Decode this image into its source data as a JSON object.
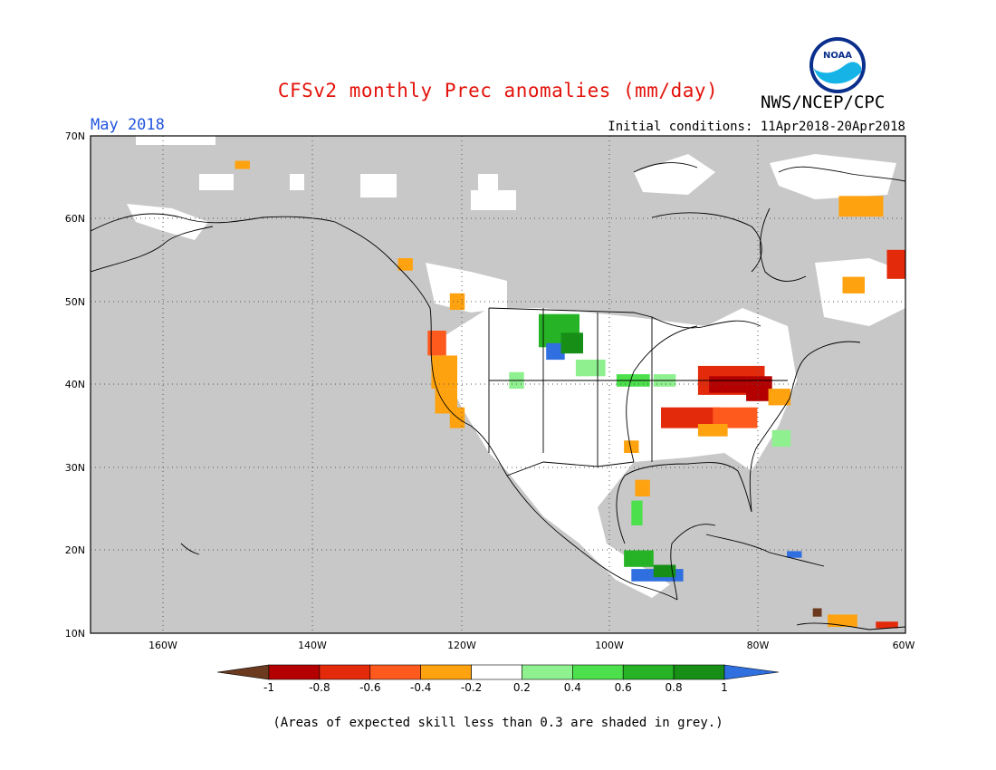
{
  "header": {
    "title": "CFSv2 monthly Prec anomalies (mm/day)",
    "org": "NWS/NCEP/CPC",
    "month": "May 2018",
    "initial_conditions": "Initial conditions: 11Apr2018-20Apr2018",
    "logo_text": "NOAA"
  },
  "footnote": "(Areas of expected skill less than 0.3 are shaded in grey.)",
  "colors": {
    "background_grey": "#c8c8c8",
    "land_white": "#ffffff",
    "coast": "#000000"
  },
  "map": {
    "lat_labels": [
      "70N",
      "60N",
      "50N",
      "40N",
      "30N",
      "20N",
      "10N"
    ],
    "lon_labels": [
      "160W",
      "140W",
      "120W",
      "100W",
      "80W",
      "60W"
    ]
  },
  "colorbar": {
    "labels": [
      "-1",
      "-0.8",
      "-0.6",
      "-0.4",
      "-0.2",
      "0.2",
      "0.4",
      "0.6",
      "0.8",
      "1"
    ],
    "colors": [
      "#6b3a1f",
      "#b40000",
      "#e32a0b",
      "#ff5a1e",
      "#ffa20f",
      "#ffffff",
      "#8ef08e",
      "#4ce04c",
      "#26b426",
      "#178f17",
      "#2f6fe0"
    ]
  },
  "anomaly_patches": [
    {
      "lon": -124.0,
      "lat": 41.5,
      "w": 3.5,
      "h": 4.0,
      "color": "#ffa20f"
    },
    {
      "lon": -124.5,
      "lat": 45.0,
      "w": 2.5,
      "h": 3.0,
      "color": "#ff5a1e"
    },
    {
      "lon": -123.5,
      "lat": 38.0,
      "w": 3.0,
      "h": 3.0,
      "color": "#ffa20f"
    },
    {
      "lon": -121.5,
      "lat": 36.0,
      "w": 2.0,
      "h": 2.5,
      "color": "#ffa20f"
    },
    {
      "lon": -128.5,
      "lat": 54.5,
      "w": 2.0,
      "h": 1.5,
      "color": "#ffa20f"
    },
    {
      "lon": -121.5,
      "lat": 50.0,
      "w": 2.0,
      "h": 2.0,
      "color": "#ffa20f"
    },
    {
      "lon": -150.5,
      "lat": 66.5,
      "w": 2.0,
      "h": 1.0,
      "color": "#ffa20f"
    },
    {
      "lon": -109.5,
      "lat": 46.5,
      "w": 5.5,
      "h": 4.0,
      "color": "#26b426"
    },
    {
      "lon": -108.5,
      "lat": 44.0,
      "w": 2.5,
      "h": 2.0,
      "color": "#2f6fe0"
    },
    {
      "lon": -106.5,
      "lat": 45.0,
      "w": 3.0,
      "h": 2.5,
      "color": "#178f17"
    },
    {
      "lon": -104.5,
      "lat": 42.0,
      "w": 4.0,
      "h": 2.0,
      "color": "#8ef08e"
    },
    {
      "lon": -99.0,
      "lat": 40.5,
      "w": 4.5,
      "h": 1.5,
      "color": "#4ce04c"
    },
    {
      "lon": -94.0,
      "lat": 40.5,
      "w": 3.0,
      "h": 1.5,
      "color": "#8ef08e"
    },
    {
      "lon": -113.5,
      "lat": 40.5,
      "w": 2.0,
      "h": 2.0,
      "color": "#8ef08e"
    },
    {
      "lon": -88.0,
      "lat": 40.5,
      "w": 9.0,
      "h": 3.5,
      "color": "#e32a0b"
    },
    {
      "lon": -86.5,
      "lat": 40.0,
      "w": 5.0,
      "h": 2.0,
      "color": "#b40000"
    },
    {
      "lon": -81.5,
      "lat": 39.5,
      "w": 3.5,
      "h": 3.0,
      "color": "#b40000"
    },
    {
      "lon": -78.5,
      "lat": 38.5,
      "w": 3.0,
      "h": 2.0,
      "color": "#ffa20f"
    },
    {
      "lon": -93.0,
      "lat": 36.0,
      "w": 8.0,
      "h": 2.5,
      "color": "#e32a0b"
    },
    {
      "lon": -86.0,
      "lat": 36.0,
      "w": 6.0,
      "h": 2.5,
      "color": "#ff5a1e"
    },
    {
      "lon": -88.0,
      "lat": 34.5,
      "w": 4.0,
      "h": 1.5,
      "color": "#ffa20f"
    },
    {
      "lon": -98.0,
      "lat": 32.5,
      "w": 2.0,
      "h": 1.5,
      "color": "#ffa20f"
    },
    {
      "lon": -96.5,
      "lat": 27.5,
      "w": 2.0,
      "h": 2.0,
      "color": "#ffa20f"
    },
    {
      "lon": -97.0,
      "lat": 24.5,
      "w": 1.5,
      "h": 3.0,
      "color": "#4ce04c"
    },
    {
      "lon": -98.0,
      "lat": 19.0,
      "w": 4.0,
      "h": 2.0,
      "color": "#26b426"
    },
    {
      "lon": -97.0,
      "lat": 17.0,
      "w": 7.0,
      "h": 1.5,
      "color": "#2f6fe0"
    },
    {
      "lon": -94.0,
      "lat": 17.5,
      "w": 3.0,
      "h": 1.5,
      "color": "#178f17"
    },
    {
      "lon": -78.0,
      "lat": 33.5,
      "w": 2.5,
      "h": 2.0,
      "color": "#8ef08e"
    },
    {
      "lon": -69.0,
      "lat": 61.5,
      "w": 6.0,
      "h": 2.5,
      "color": "#ffa20f"
    },
    {
      "lon": -62.5,
      "lat": 54.5,
      "w": 5.0,
      "h": 3.5,
      "color": "#e32a0b"
    },
    {
      "lon": -68.5,
      "lat": 52.0,
      "w": 3.0,
      "h": 2.0,
      "color": "#ffa20f"
    },
    {
      "lon": -76.0,
      "lat": 19.5,
      "w": 2.0,
      "h": 0.8,
      "color": "#2f6fe0"
    },
    {
      "lon": -70.5,
      "lat": 11.5,
      "w": 4.0,
      "h": 1.5,
      "color": "#ffa20f"
    },
    {
      "lon": -64.0,
      "lat": 11.0,
      "w": 3.0,
      "h": 0.8,
      "color": "#e32a0b"
    },
    {
      "lon": -72.5,
      "lat": 12.5,
      "w": 1.2,
      "h": 1.0,
      "color": "#6b3a1f"
    }
  ]
}
